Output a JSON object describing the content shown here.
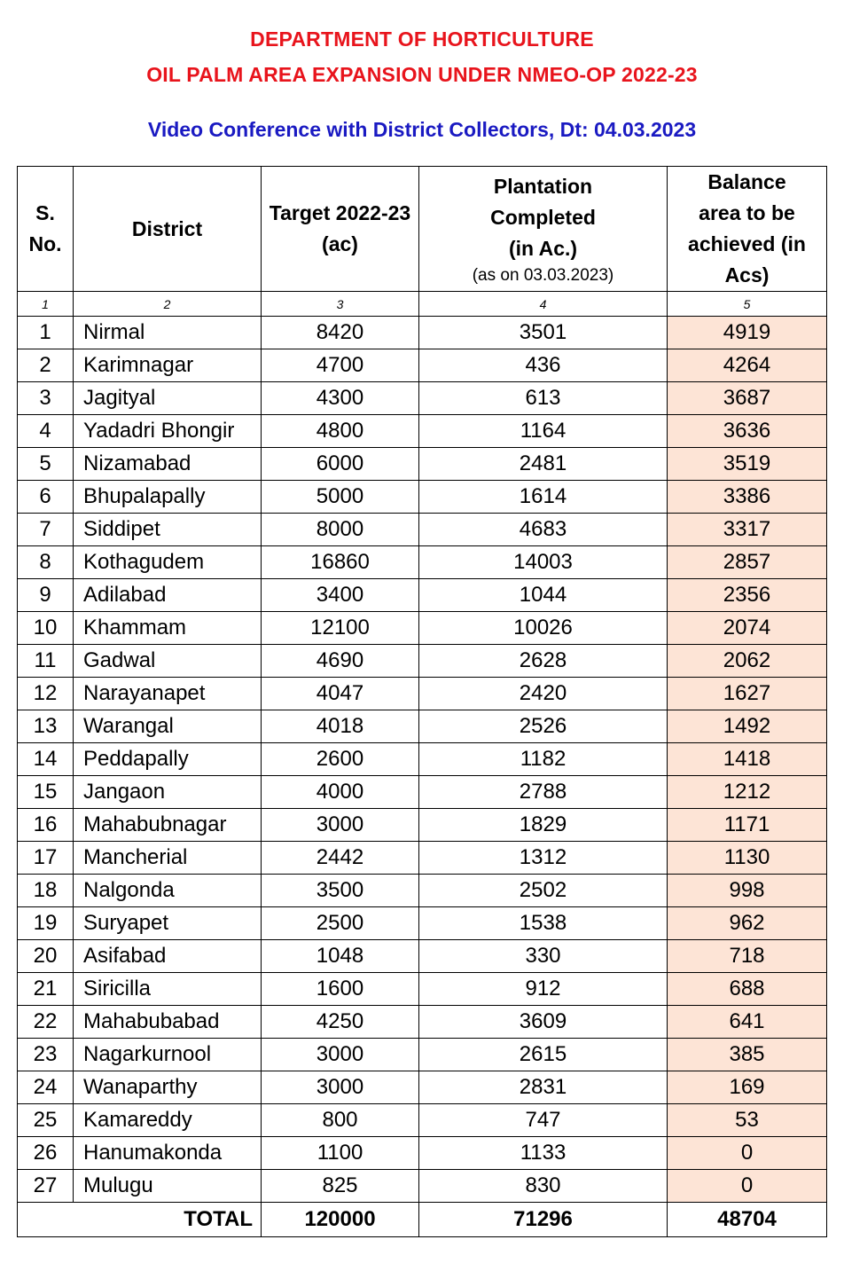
{
  "header": {
    "line1": "DEPARTMENT OF HORTICULTURE",
    "line2": "OIL PALM AREA EXPANSION UNDER NMEO-OP 2022-23",
    "line3": "Video Conference with District Collectors, Dt: 04.03.2023"
  },
  "table": {
    "columns": {
      "sno": "S. No.",
      "district": "District",
      "target": "Target 2022-23 (ac)",
      "plantation": "Plantation Completed (in Ac.)",
      "plantation_note": "(as on 03.03.2023)",
      "balance": "Balance area to be achieved (in Acs)"
    },
    "column_numbers": [
      "1",
      "2",
      "3",
      "4",
      "5"
    ],
    "rows": [
      {
        "sno": "1",
        "district": "Nirmal",
        "target": "8420",
        "completed": "3501",
        "balance": "4919"
      },
      {
        "sno": "2",
        "district": "Karimnagar",
        "target": "4700",
        "completed": "436",
        "balance": "4264"
      },
      {
        "sno": "3",
        "district": "Jagityal",
        "target": "4300",
        "completed": "613",
        "balance": "3687"
      },
      {
        "sno": "4",
        "district": "Yadadri Bhongir",
        "target": "4800",
        "completed": "1164",
        "balance": "3636"
      },
      {
        "sno": "5",
        "district": "Nizamabad",
        "target": "6000",
        "completed": "2481",
        "balance": "3519"
      },
      {
        "sno": "6",
        "district": "Bhupalapally",
        "target": "5000",
        "completed": "1614",
        "balance": "3386"
      },
      {
        "sno": "7",
        "district": "Siddipet",
        "target": "8000",
        "completed": "4683",
        "balance": "3317"
      },
      {
        "sno": "8",
        "district": "Kothagudem",
        "target": "16860",
        "completed": "14003",
        "balance": "2857"
      },
      {
        "sno": "9",
        "district": "Adilabad",
        "target": "3400",
        "completed": "1044",
        "balance": "2356"
      },
      {
        "sno": "10",
        "district": "Khammam",
        "target": "12100",
        "completed": "10026",
        "balance": "2074"
      },
      {
        "sno": "11",
        "district": "Gadwal",
        "target": "4690",
        "completed": "2628",
        "balance": "2062"
      },
      {
        "sno": "12",
        "district": "Narayanapet",
        "target": "4047",
        "completed": "2420",
        "balance": "1627"
      },
      {
        "sno": "13",
        "district": "Warangal",
        "target": "4018",
        "completed": "2526",
        "balance": "1492"
      },
      {
        "sno": "14",
        "district": "Peddapally",
        "target": "2600",
        "completed": "1182",
        "balance": "1418"
      },
      {
        "sno": "15",
        "district": "Jangaon",
        "target": "4000",
        "completed": "2788",
        "balance": "1212"
      },
      {
        "sno": "16",
        "district": "Mahabubnagar",
        "target": "3000",
        "completed": "1829",
        "balance": "1171"
      },
      {
        "sno": "17",
        "district": "Mancherial",
        "target": "2442",
        "completed": "1312",
        "balance": "1130"
      },
      {
        "sno": "18",
        "district": "Nalgonda",
        "target": "3500",
        "completed": "2502",
        "balance": "998"
      },
      {
        "sno": "19",
        "district": "Suryapet",
        "target": "2500",
        "completed": "1538",
        "balance": "962"
      },
      {
        "sno": "20",
        "district": "Asifabad",
        "target": "1048",
        "completed": "330",
        "balance": "718"
      },
      {
        "sno": "21",
        "district": "Siricilla",
        "target": "1600",
        "completed": "912",
        "balance": "688"
      },
      {
        "sno": "22",
        "district": "Mahabubabad",
        "target": "4250",
        "completed": "3609",
        "balance": "641"
      },
      {
        "sno": "23",
        "district": "Nagarkurnool",
        "target": "3000",
        "completed": "2615",
        "balance": "385"
      },
      {
        "sno": "24",
        "district": "Wanaparthy",
        "target": "3000",
        "completed": "2831",
        "balance": "169"
      },
      {
        "sno": "25",
        "district": "Kamareddy",
        "target": "800",
        "completed": "747",
        "balance": "53"
      },
      {
        "sno": "26",
        "district": "Hanumakonda",
        "target": "1100",
        "completed": "1133",
        "balance": "0"
      },
      {
        "sno": "27",
        "district": "Mulugu",
        "target": "825",
        "completed": "830",
        "balance": "0"
      }
    ],
    "total": {
      "label": "TOTAL",
      "target": "120000",
      "completed": "71296",
      "balance": "48704"
    }
  },
  "colors": {
    "title_red": "#e8141c",
    "subtitle_blue": "#1a1ac2",
    "balance_highlight": "#fde4d6"
  }
}
